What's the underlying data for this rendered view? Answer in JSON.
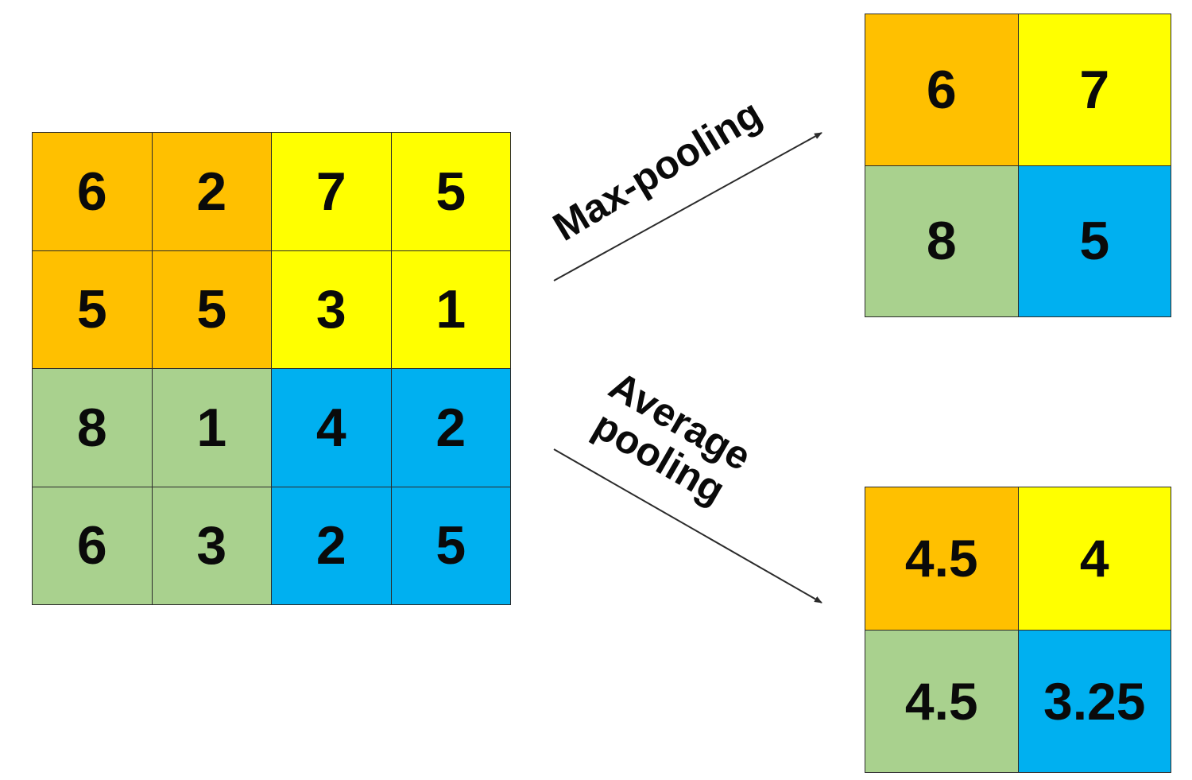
{
  "colors": {
    "orange": "#FFC000",
    "yellow": "#FFFF00",
    "green": "#A9D18E",
    "blue": "#00B0F0"
  },
  "input": {
    "cells": [
      {
        "value": "6",
        "color": "#FFC000"
      },
      {
        "value": "2",
        "color": "#FFC000"
      },
      {
        "value": "7",
        "color": "#FFFF00"
      },
      {
        "value": "5",
        "color": "#FFFF00"
      },
      {
        "value": "5",
        "color": "#FFC000"
      },
      {
        "value": "5",
        "color": "#FFC000"
      },
      {
        "value": "3",
        "color": "#FFFF00"
      },
      {
        "value": "1",
        "color": "#FFFF00"
      },
      {
        "value": "8",
        "color": "#A9D18E"
      },
      {
        "value": "1",
        "color": "#A9D18E"
      },
      {
        "value": "4",
        "color": "#00B0F0"
      },
      {
        "value": "2",
        "color": "#00B0F0"
      },
      {
        "value": "6",
        "color": "#A9D18E"
      },
      {
        "value": "3",
        "color": "#A9D18E"
      },
      {
        "value": "2",
        "color": "#00B0F0"
      },
      {
        "value": "5",
        "color": "#00B0F0"
      }
    ]
  },
  "max_pooling": {
    "label": "Max-pooling",
    "cells": [
      {
        "value": "6",
        "color": "#FFC000"
      },
      {
        "value": "7",
        "color": "#FFFF00"
      },
      {
        "value": "8",
        "color": "#A9D18E"
      },
      {
        "value": "5",
        "color": "#00B0F0"
      }
    ]
  },
  "average_pooling": {
    "label_line1": "Average",
    "label_line2": "pooling",
    "cells": [
      {
        "value": "4.5",
        "color": "#FFC000"
      },
      {
        "value": "4",
        "color": "#FFFF00"
      },
      {
        "value": "4.5",
        "color": "#A9D18E"
      },
      {
        "value": "3.25",
        "color": "#00B0F0"
      }
    ]
  }
}
